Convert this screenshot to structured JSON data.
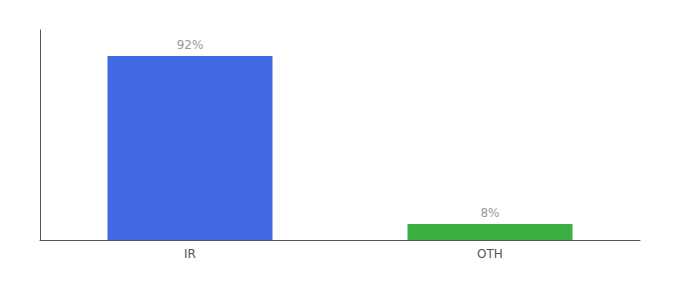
{
  "chart_data": {
    "type": "bar",
    "categories": [
      "IR",
      "OTH"
    ],
    "values": [
      92,
      8
    ],
    "value_labels": [
      "92%",
      "8%"
    ],
    "colors": [
      "#4169e1",
      "#3cb043"
    ],
    "ylim": [
      0,
      105
    ],
    "data_labels": true,
    "tick_labels": "x",
    "grid": false
  }
}
